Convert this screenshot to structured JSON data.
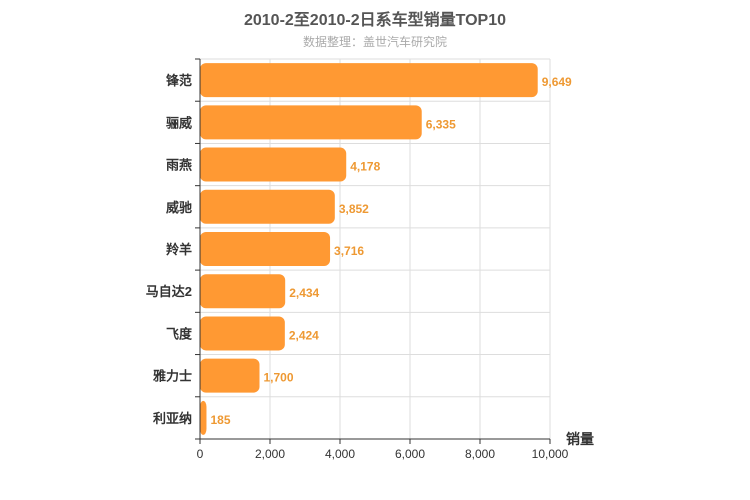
{
  "chart_data": {
    "type": "bar",
    "orientation": "horizontal",
    "title": "2010-2至2010-2日系车型销量TOP10",
    "subtitle": "数据整理：盖世汽车研究院",
    "xlabel": "销量",
    "ylabel": "",
    "categories": [
      "锋范",
      "骊威",
      "雨燕",
      "威驰",
      "羚羊",
      "马自达2",
      "飞度",
      "雅力士",
      "利亚纳"
    ],
    "values": [
      9649,
      6335,
      4178,
      3852,
      3716,
      2434,
      2424,
      1700,
      185
    ],
    "value_labels": [
      "9,649",
      "6,335",
      "4,178",
      "3,852",
      "3,716",
      "2,434",
      "2,424",
      "1,700",
      "185"
    ],
    "xlim": [
      0,
      10000
    ],
    "ticks": [
      0,
      2000,
      4000,
      6000,
      8000,
      10000
    ],
    "tick_labels": [
      "0",
      "2,000",
      "4,000",
      "6,000",
      "8,000",
      "10,000"
    ],
    "grid": true,
    "legend": "none",
    "bar_color": "#ff9933",
    "label_color": "#ee9933"
  }
}
